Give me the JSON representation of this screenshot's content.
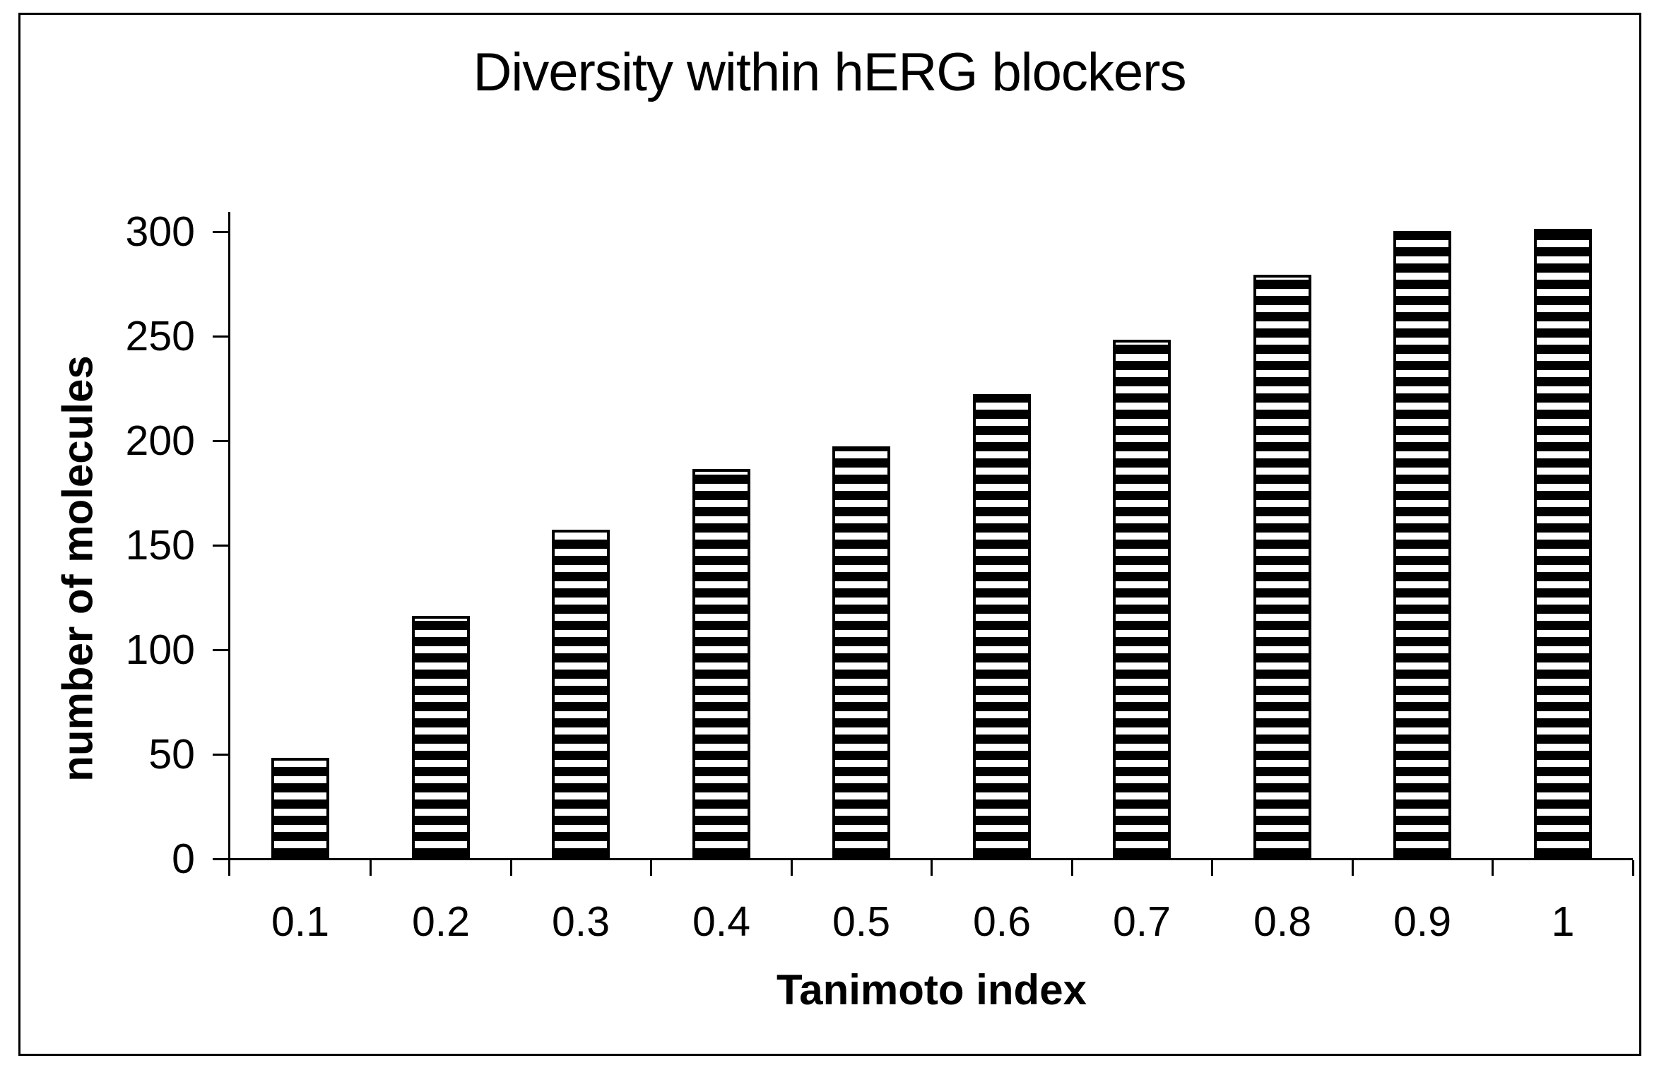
{
  "chart_data": {
    "type": "bar",
    "title": "Diversity within hERG blockers",
    "xlabel": "Tanimoto index",
    "ylabel": "number of molecules",
    "categories": [
      "0.1",
      "0.2",
      "0.3",
      "0.4",
      "0.5",
      "0.6",
      "0.7",
      "0.8",
      "0.9",
      "1"
    ],
    "values": [
      49,
      117,
      158,
      187,
      198,
      223,
      249,
      280,
      301,
      302
    ],
    "yticks": [
      0,
      50,
      100,
      150,
      200,
      250,
      300
    ],
    "ylim": [
      0,
      310
    ],
    "grid": false,
    "legend_position": "none",
    "bar_pattern": "horizontal-stripes",
    "colors": {
      "ink": "#000000",
      "background": "#ffffff"
    }
  }
}
